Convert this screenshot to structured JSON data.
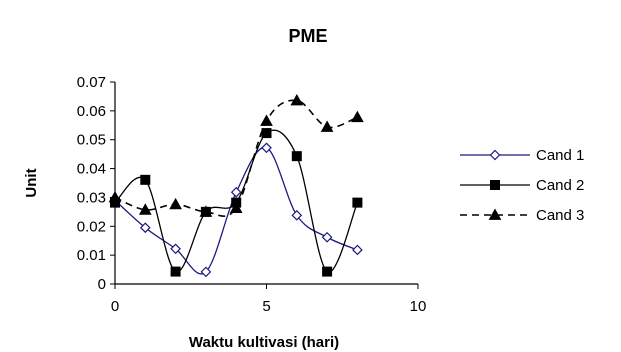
{
  "chart_data": {
    "type": "line",
    "title": "PME",
    "xlabel": "Waktu kultivasi (hari)",
    "ylabel": "Unit",
    "xlim": [
      0,
      10
    ],
    "ylim": [
      0,
      0.07
    ],
    "xticks": [
      "0",
      "5",
      "10"
    ],
    "yticks": [
      "0",
      "0.01",
      "0.02",
      "0.03",
      "0.04",
      "0.05",
      "0.06",
      "0.07"
    ],
    "grid": false,
    "legend_position": "right",
    "x": [
      0,
      1,
      2,
      3,
      4,
      5,
      6,
      7,
      8
    ],
    "series": [
      {
        "name": "Cand 1",
        "values": [
          0.029,
          0.0195,
          0.0122,
          0.0042,
          0.0318,
          0.0472,
          0.0238,
          0.0162,
          0.0118
        ],
        "color": "#1a1a80",
        "marker": "diamond-open",
        "line_style": "solid"
      },
      {
        "name": "Cand 2",
        "values": [
          0.0282,
          0.0361,
          0.0043,
          0.025,
          0.0282,
          0.0523,
          0.0443,
          0.0043,
          0.0282
        ],
        "color": "#000000",
        "marker": "square",
        "line_style": "solid"
      },
      {
        "name": "Cand 3",
        "values": [
          0.03,
          0.0257,
          0.0276,
          0.025,
          0.0263,
          0.0565,
          0.0636,
          0.0544,
          0.0578
        ],
        "color": "#000000",
        "marker": "triangle",
        "line_style": "dashed"
      }
    ]
  }
}
